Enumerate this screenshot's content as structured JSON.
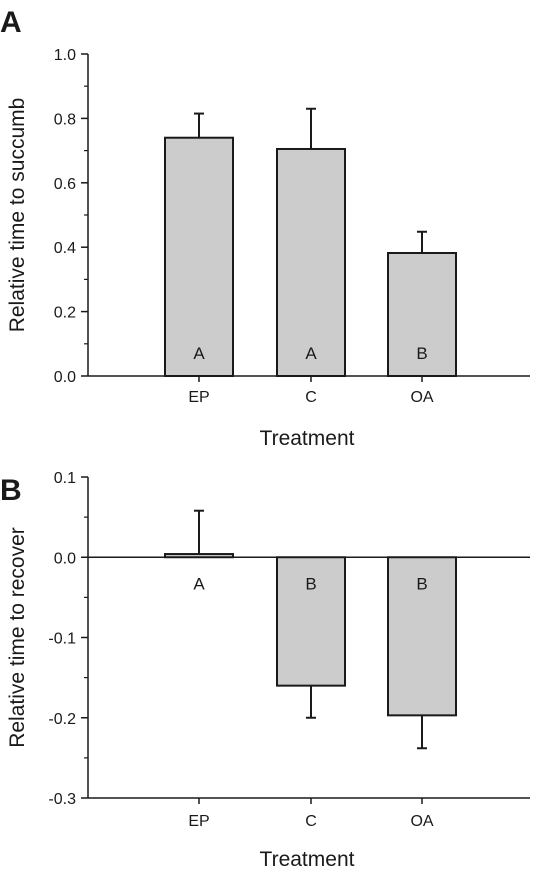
{
  "chart_data": [
    {
      "type": "bar",
      "panel_label": "A",
      "categories": [
        "EP",
        "C",
        "OA"
      ],
      "values": [
        0.74,
        0.705,
        0.382
      ],
      "error_upper": [
        0.815,
        0.83,
        0.448
      ],
      "significance_letters": [
        "A",
        "A",
        "B"
      ],
      "xlabel": "Treatment",
      "ylabel": "Relative time to succumb",
      "ylim": [
        0.0,
        1.0
      ],
      "yticks": [
        "0.0",
        "0.2",
        "0.4",
        "0.6",
        "0.8",
        "1.0"
      ],
      "bar_color": "#cccccc",
      "grid": false
    },
    {
      "type": "bar",
      "panel_label": "B",
      "categories": [
        "EP",
        "C",
        "OA"
      ],
      "values": [
        0.004,
        -0.16,
        -0.197
      ],
      "error_upper": [
        0.058,
        -0.2,
        -0.238
      ],
      "significance_letters": [
        "A",
        "B",
        "B"
      ],
      "xlabel": "Treatment",
      "ylabel": "Relative time to recover",
      "ylim": [
        -0.3,
        0.1
      ],
      "yticks": [
        "-0.3",
        "-0.2",
        "-0.1",
        "0.0",
        "0.1"
      ],
      "bar_color": "#cccccc",
      "grid": false
    }
  ]
}
